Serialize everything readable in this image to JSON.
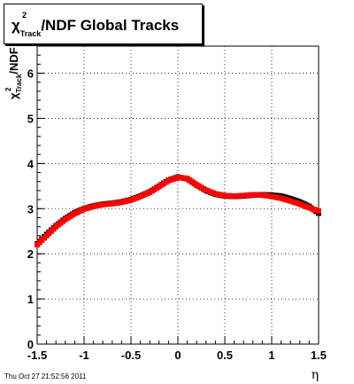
{
  "title": {
    "chi": "χ",
    "sup": "2",
    "sub": "Track",
    "rest": "/NDF  Global Tracks"
  },
  "ylabel": {
    "chi": "χ",
    "sup": "2",
    "sub": "Track",
    "rest": "/NDF"
  },
  "footer": "Thu Oct 27 21:52:56 2011",
  "chart_data": {
    "type": "scatter",
    "xlabel": "η",
    "xlim": [
      -1.5,
      1.5
    ],
    "ylim": [
      0,
      6.6
    ],
    "x_ticks": [
      -1.5,
      -1,
      -0.5,
      0,
      0.5,
      1,
      1.5
    ],
    "x_tick_labels": [
      "-1.5",
      "-1",
      "-0.5",
      "0",
      "0.5",
      "1",
      "1.5"
    ],
    "y_ticks": [
      0,
      1,
      2,
      3,
      4,
      5,
      6
    ],
    "y_tick_labels": [
      "0",
      "1",
      "2",
      "3",
      "4",
      "5",
      "6"
    ],
    "grid": true,
    "series": [
      {
        "marker_color": "#000000",
        "x": [
          -1.5,
          -1.4,
          -1.3,
          -1.2,
          -1.1,
          -1.0,
          -0.9,
          -0.8,
          -0.7,
          -0.6,
          -0.5,
          -0.4,
          -0.3,
          -0.2,
          -0.1,
          0.0,
          0.1,
          0.2,
          0.3,
          0.4,
          0.5,
          0.6,
          0.7,
          0.8,
          0.9,
          1.0,
          1.1,
          1.2,
          1.3,
          1.4,
          1.5
        ],
        "y": [
          2.22,
          2.43,
          2.62,
          2.78,
          2.91,
          3.0,
          3.06,
          3.1,
          3.12,
          3.15,
          3.2,
          3.28,
          3.37,
          3.5,
          3.63,
          3.7,
          3.66,
          3.52,
          3.4,
          3.32,
          3.28,
          3.27,
          3.28,
          3.3,
          3.31,
          3.3,
          3.28,
          3.22,
          3.15,
          3.05,
          2.9
        ]
      },
      {
        "marker_color": "#ff0000",
        "x": [
          -1.5,
          -1.4,
          -1.3,
          -1.2,
          -1.1,
          -1.0,
          -0.9,
          -0.8,
          -0.7,
          -0.6,
          -0.5,
          -0.4,
          -0.3,
          -0.2,
          -0.1,
          0.0,
          0.1,
          0.2,
          0.3,
          0.4,
          0.5,
          0.6,
          0.7,
          0.8,
          0.9,
          1.0,
          1.1,
          1.2,
          1.3,
          1.4,
          1.5
        ],
        "y": [
          2.2,
          2.4,
          2.6,
          2.76,
          2.89,
          2.99,
          3.05,
          3.09,
          3.11,
          3.14,
          3.19,
          3.27,
          3.36,
          3.49,
          3.62,
          3.69,
          3.67,
          3.53,
          3.41,
          3.33,
          3.29,
          3.28,
          3.29,
          3.31,
          3.3,
          3.27,
          3.23,
          3.17,
          3.1,
          3.02,
          2.95
        ]
      }
    ]
  }
}
